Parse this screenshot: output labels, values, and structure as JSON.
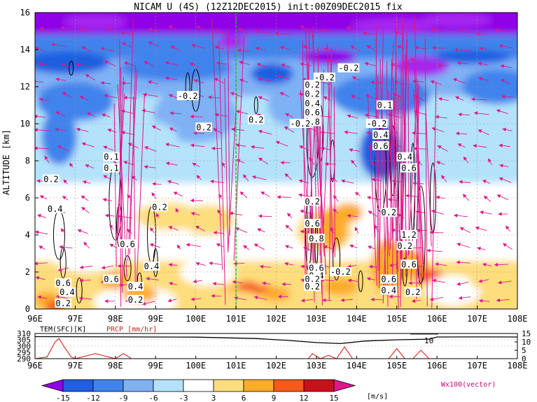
{
  "title": "NICAM  U  (4S)  (12Z12DEC2015)  init:00Z09DEC2015  fix",
  "palette": {
    "dark_purple": "#8f00e6",
    "mid_purple": "#a628f0",
    "blue1": "#1f5fe0",
    "blue2": "#3f83ec",
    "blue3": "#7fb1f5",
    "light_blue": "#b4e2fa",
    "white": "#ffffff",
    "yellow": "#fedd7c",
    "orange": "#fdab2a",
    "red_orange": "#f65a1a",
    "dark_red": "#c8101a",
    "vector": "#e0168c",
    "marker_line": "#22bb22"
  },
  "chart_data": [
    {
      "type": "heatmap",
      "description_variable": "U",
      "x_ticks": [
        "96E",
        "97E",
        "98E",
        "99E",
        "100E",
        "101E",
        "102E",
        "103E",
        "104E",
        "105E",
        "106E",
        "107E",
        "108E"
      ],
      "xlim": [
        96,
        108
      ],
      "ylabel": "ALTITUDE [km]",
      "y_ticks": [
        "0",
        "2",
        "4",
        "6",
        "8",
        "10",
        "12",
        "14",
        "16"
      ],
      "ylim": [
        0,
        16
      ],
      "grid": true,
      "marker_longitude": 101,
      "contour_labels": [
        {
          "text": "0.2",
          "lon": 96.4,
          "z": 7.0
        },
        {
          "text": "0.4",
          "lon": 96.5,
          "z": 5.4
        },
        {
          "text": "0.6",
          "lon": 96.7,
          "z": 1.4
        },
        {
          "text": "0.4",
          "lon": 96.8,
          "z": 0.9
        },
        {
          "text": "0.2",
          "lon": 96.7,
          "z": 0.3
        },
        {
          "text": "0.1",
          "lon": 97.9,
          "z": 8.2
        },
        {
          "text": "0.1",
          "lon": 97.9,
          "z": 7.6
        },
        {
          "text": "0.6",
          "lon": 98.3,
          "z": 3.5
        },
        {
          "text": "0.6",
          "lon": 97.9,
          "z": 1.6
        },
        {
          "text": "0.4",
          "lon": 98.5,
          "z": 1.2
        },
        {
          "text": "0.2",
          "lon": 98.5,
          "z": 0.5
        },
        {
          "text": "0.2",
          "lon": 99.1,
          "z": 5.5
        },
        {
          "text": "0.4",
          "lon": 98.9,
          "z": 2.3
        },
        {
          "text": "-0.2",
          "lon": 99.8,
          "z": 11.5
        },
        {
          "text": "0.2",
          "lon": 100.2,
          "z": 9.8
        },
        {
          "text": "0.2",
          "lon": 101.5,
          "z": 10.2
        },
        {
          "text": "-0.2",
          "lon": 103.2,
          "z": 12.5
        },
        {
          "text": "0.2",
          "lon": 102.9,
          "z": 12.1
        },
        {
          "text": "0.2",
          "lon": 102.9,
          "z": 11.6
        },
        {
          "text": "0.4",
          "lon": 102.9,
          "z": 11.1
        },
        {
          "text": "0.6",
          "lon": 102.9,
          "z": 10.6
        },
        {
          "text": "0.8",
          "lon": 102.9,
          "z": 10.1
        },
        {
          "text": "-0.2",
          "lon": 102.6,
          "z": 10.0
        },
        {
          "text": "-0.2",
          "lon": 103.8,
          "z": 13.0
        },
        {
          "text": "0.2",
          "lon": 102.9,
          "z": 5.8
        },
        {
          "text": "0.6",
          "lon": 102.9,
          "z": 4.6
        },
        {
          "text": "0.8",
          "lon": 103.0,
          "z": 3.8
        },
        {
          "text": "0.6",
          "lon": 103.0,
          "z": 2.2
        },
        {
          "text": "0.4",
          "lon": 103.0,
          "z": 1.8
        },
        {
          "text": "0.2",
          "lon": 102.9,
          "z": 1.6
        },
        {
          "text": "0.2",
          "lon": 102.9,
          "z": 1.2
        },
        {
          "text": "-0.2",
          "lon": 103.6,
          "z": 2.0
        },
        {
          "text": "0.1",
          "lon": 104.7,
          "z": 11.0
        },
        {
          "text": "-0.2",
          "lon": 104.5,
          "z": 10.0
        },
        {
          "text": "0.4",
          "lon": 104.6,
          "z": 9.4
        },
        {
          "text": "0.6",
          "lon": 104.6,
          "z": 8.8
        },
        {
          "text": "0.4",
          "lon": 105.2,
          "z": 8.2
        },
        {
          "text": "0.6",
          "lon": 105.3,
          "z": 7.6
        },
        {
          "text": "0.2",
          "lon": 104.8,
          "z": 5.2
        },
        {
          "text": "1.2",
          "lon": 105.3,
          "z": 4.0
        },
        {
          "text": "0.2",
          "lon": 105.2,
          "z": 3.4
        },
        {
          "text": "0.6",
          "lon": 105.3,
          "z": 2.4
        },
        {
          "text": "0.6",
          "lon": 104.8,
          "z": 1.6
        },
        {
          "text": "0.4",
          "lon": 104.8,
          "z": 1.0
        },
        {
          "text": "0.2",
          "lon": 105.4,
          "z": 0.9
        }
      ]
    },
    {
      "type": "line",
      "series": [
        {
          "name": "TEM(SFC)[K]"
        },
        {
          "name": "PRCP [mm/hr]"
        }
      ],
      "left_axis_ticks": [
        "310",
        "305",
        "300",
        "295",
        "290"
      ],
      "left_ylim": [
        290,
        310
      ],
      "right_axis_ticks": [
        "15",
        "10",
        "5",
        "0"
      ],
      "right_ylim": [
        0,
        15
      ],
      "x_ticks": [
        "96E",
        "97E",
        "98E",
        "99E",
        "100E",
        "101E",
        "102E",
        "103E",
        "104E",
        "105E",
        "106E",
        "107E",
        "108E"
      ],
      "temperature": {
        "lon": [
          96,
          98,
          100,
          101.5,
          102.3,
          103,
          103.6,
          104.2,
          105,
          105.8,
          106,
          107,
          108
        ],
        "values": [
          307.5,
          307.3,
          307.1,
          306.0,
          304.5,
          302.8,
          302.0,
          304.0,
          305.0,
          305.5,
          307.2,
          307.3,
          307.2
        ]
      },
      "precipitation": {
        "lon": [
          96,
          96.3,
          96.5,
          96.6,
          96.7,
          96.9,
          97,
          97.5,
          98,
          98.2,
          98.4,
          99,
          100,
          101,
          102,
          102.8,
          102.9,
          103.1,
          103.3,
          103.5,
          103.7,
          103.9,
          104.2,
          104.8,
          105,
          105.2,
          105.4,
          105.6,
          105.8,
          106,
          108
        ],
        "values": [
          0,
          1,
          10,
          12,
          8,
          1,
          0,
          3,
          0,
          3,
          0,
          0,
          0,
          0,
          0,
          0,
          3,
          0,
          2,
          0,
          7,
          0,
          0,
          0,
          6,
          0,
          0,
          5,
          0,
          0,
          0
        ]
      },
      "annotation": "10"
    },
    {
      "type": "colorbar",
      "levels": [
        "-15",
        "-12",
        "-9",
        "-6",
        "-3",
        "3",
        "6",
        "9",
        "12",
        "15"
      ],
      "unit": "[m/s]",
      "vector_note": "Wx100(vector)"
    }
  ]
}
